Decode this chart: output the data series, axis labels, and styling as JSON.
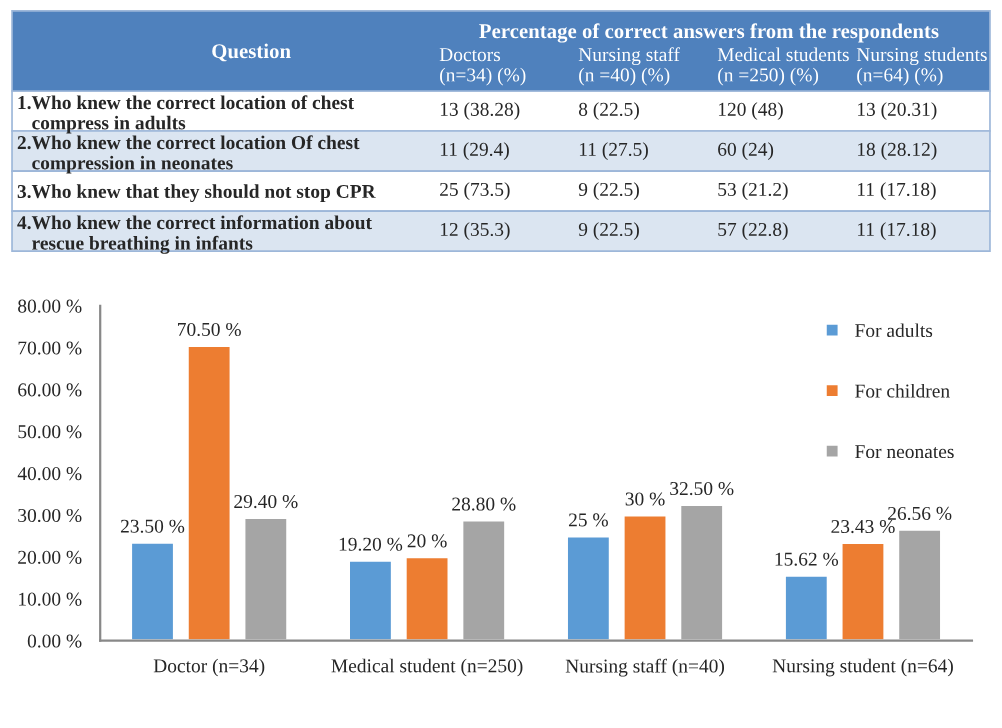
{
  "chart_data": [
    {
      "type": "other",
      "title": "Percentage of correct answers from the respondents",
      "ylabel": "Question",
      "categories": [
        "Doctors\n(n=34) (%)",
        "Nursing staff\n(n =40) (%)",
        "Medical students\n(n =250) (%)",
        "Nursing students\n(n=64) (%)"
      ],
      "y_categories": [
        "1.Who knew the correct location of chest\n   compress in adults",
        "2.Who knew the correct location Of chest\n   compression in neonates",
        "3.Who knew that they should not stop CPR",
        "4.Who knew the correct information about\n   rescue breathing in infants"
      ],
      "annotations": [
        "13 (38.28)",
        "8 (22.5)",
        "120 (48)",
        "13 (20.31)",
        "11 (29.4)",
        "11 (27.5)",
        "60 (24)",
        "18 (28.12)",
        "25 (73.5)",
        "9 (22.5)",
        "53 (21.2)",
        "11 (17.18)",
        "12 (35.3)",
        "9 (22.5)",
        "57 (22.8)",
        "11 (17.18)"
      ]
    },
    {
      "type": "bar",
      "categories": [
        "Doctor (n=34)",
        "Medical student (n=250)",
        "Nursing staff (n=40)",
        "Nursing student (n=64)"
      ],
      "series": [
        {
          "name": "For adults",
          "color": "#5b9bd5",
          "values": [
            23.5,
            19.2,
            25,
            15.62
          ],
          "value_labels": [
            "23.50 %",
            "19.20 %",
            "25 %",
            "15.62 %"
          ]
        },
        {
          "name": "For children",
          "color": "#ed7d31",
          "values": [
            70.5,
            20,
            30,
            23.43
          ],
          "value_labels": [
            "70.50 %",
            "20 %",
            "30 %",
            "23.43 %"
          ]
        },
        {
          "name": "For neonates",
          "color": "#a5a5a5",
          "values": [
            29.4,
            28.8,
            32.5,
            26.56
          ],
          "value_labels": [
            "29.40 %",
            "28.80 %",
            "32.50 %",
            "26.56 %"
          ]
        }
      ],
      "ylim": [
        0,
        80
      ],
      "yticks": [
        {
          "value": 0,
          "label": "0.00 %"
        },
        {
          "value": 10,
          "label": "10.00 %"
        },
        {
          "value": 20,
          "label": "20.00 %"
        },
        {
          "value": 30,
          "label": "30.00 %"
        },
        {
          "value": 40,
          "label": "40.00 %"
        },
        {
          "value": 50,
          "label": "50.00 %"
        },
        {
          "value": 60,
          "label": "60.00 %"
        },
        {
          "value": 70,
          "label": "70.00 %"
        },
        {
          "value": 80,
          "label": "80.00 %"
        }
      ],
      "legend": "top right",
      "grid": false
    }
  ]
}
